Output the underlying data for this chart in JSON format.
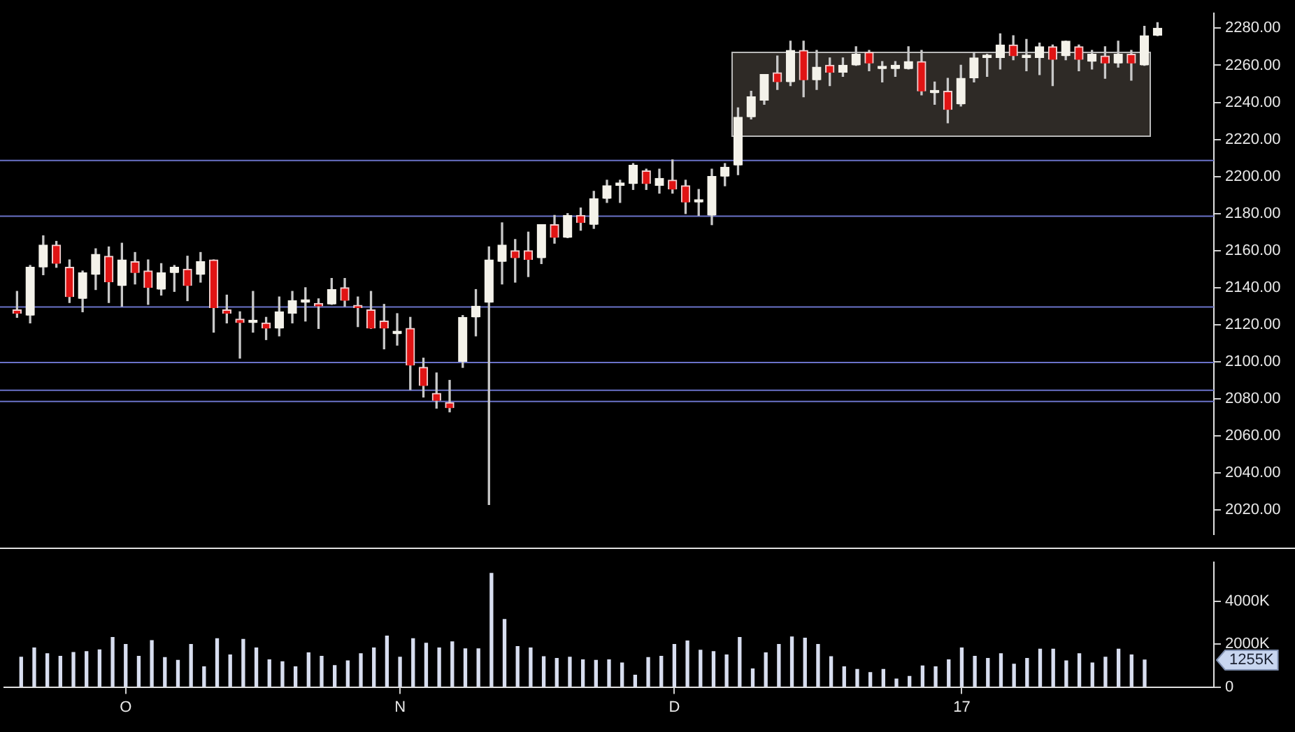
{
  "chart_data": [
    {
      "type": "candlestick",
      "ohlc": [
        [
          2128,
          2138,
          2124,
          2126
        ],
        [
          2125,
          2152,
          2121,
          2151
        ],
        [
          2151,
          2168,
          2147,
          2163
        ],
        [
          2163,
          2165,
          2151,
          2153
        ],
        [
          2151,
          2155,
          2132,
          2135
        ],
        [
          2134,
          2149,
          2127,
          2148
        ],
        [
          2147,
          2161,
          2139,
          2158
        ],
        [
          2157,
          2162,
          2132,
          2143
        ],
        [
          2141,
          2164,
          2130,
          2155
        ],
        [
          2154,
          2159,
          2142,
          2148
        ],
        [
          2149,
          2155,
          2131,
          2140
        ],
        [
          2139,
          2153,
          2136,
          2148
        ],
        [
          2148,
          2152,
          2138,
          2151
        ],
        [
          2150,
          2157,
          2133,
          2141
        ],
        [
          2147,
          2159,
          2143,
          2154
        ],
        [
          2155,
          2155,
          2116,
          2129
        ],
        [
          2128,
          2136,
          2121,
          2126
        ],
        [
          2123,
          2127,
          2102,
          2121
        ],
        [
          2121,
          2138,
          2116,
          2122
        ],
        [
          2121,
          2124,
          2112,
          2118
        ],
        [
          2118,
          2135,
          2114,
          2127
        ],
        [
          2126,
          2138,
          2121,
          2133
        ],
        [
          2132,
          2140,
          2122,
          2133
        ],
        [
          2131,
          2134,
          2118,
          2130
        ],
        [
          2131,
          2145,
          2131,
          2139
        ],
        [
          2140,
          2145,
          2130,
          2133
        ],
        [
          2130,
          2135,
          2119,
          2129
        ],
        [
          2128,
          2138,
          2118,
          2118
        ],
        [
          2122,
          2131,
          2107,
          2118
        ],
        [
          2115,
          2126,
          2109,
          2115
        ],
        [
          2118,
          2124,
          2085,
          2098
        ],
        [
          2097,
          2102,
          2081,
          2087
        ],
        [
          2083,
          2094,
          2075,
          2079
        ],
        [
          2078,
          2090,
          2073,
          2075
        ],
        [
          2100,
          2125,
          2097,
          2124
        ],
        [
          2124,
          2139,
          2114,
          2130
        ],
        [
          2132,
          2162,
          2023,
          2155
        ],
        [
          2154,
          2175,
          2142,
          2163
        ],
        [
          2160,
          2166,
          2143,
          2156
        ],
        [
          2160,
          2170,
          2146,
          2155
        ],
        [
          2156,
          2174,
          2153,
          2174
        ],
        [
          2174,
          2179,
          2164,
          2167
        ],
        [
          2167,
          2180,
          2167,
          2179
        ],
        [
          2179,
          2183,
          2171,
          2175
        ],
        [
          2174,
          2192,
          2172,
          2188
        ],
        [
          2188,
          2198,
          2186,
          2195
        ],
        [
          2195,
          2198,
          2186,
          2196
        ],
        [
          2196,
          2207,
          2193,
          2206
        ],
        [
          2203,
          2204,
          2193,
          2196
        ],
        [
          2195,
          2204,
          2191,
          2199
        ],
        [
          2198,
          2209,
          2191,
          2193
        ],
        [
          2195,
          2198,
          2180,
          2186
        ],
        [
          2186,
          2193,
          2179,
          2187
        ],
        [
          2179,
          2204,
          2174,
          2200
        ],
        [
          2200,
          2207,
          2195,
          2205
        ],
        [
          2206,
          2237,
          2201,
          2232
        ],
        [
          2232,
          2246,
          2231,
          2243
        ],
        [
          2241,
          2255,
          2239,
          2255
        ],
        [
          2256,
          2265,
          2247,
          2251
        ],
        [
          2251,
          2273,
          2249,
          2268
        ],
        [
          2268,
          2273,
          2243,
          2252
        ],
        [
          2252,
          2268,
          2247,
          2259
        ],
        [
          2260,
          2264,
          2249,
          2256
        ],
        [
          2256,
          2264,
          2254,
          2260
        ],
        [
          2260,
          2270,
          2260,
          2266
        ],
        [
          2267,
          2268,
          2257,
          2261
        ],
        [
          2258,
          2262,
          2251,
          2259
        ],
        [
          2258,
          2262,
          2254,
          2260
        ],
        [
          2258,
          2270,
          2258,
          2262
        ],
        [
          2262,
          2268,
          2244,
          2246
        ],
        [
          2245,
          2251,
          2239,
          2246
        ],
        [
          2246,
          2253,
          2229,
          2236
        ],
        [
          2239,
          2260,
          2238,
          2253
        ],
        [
          2253,
          2267,
          2251,
          2264
        ],
        [
          2264,
          2266,
          2254,
          2265
        ],
        [
          2264,
          2277,
          2258,
          2271
        ],
        [
          2271,
          2276,
          2263,
          2265
        ],
        [
          2264,
          2274,
          2257,
          2265
        ],
        [
          2264,
          2272,
          2255,
          2270
        ],
        [
          2270,
          2271,
          2249,
          2263
        ],
        [
          2265,
          2273,
          2263,
          2273
        ],
        [
          2270,
          2271,
          2257,
          2263
        ],
        [
          2262,
          2268,
          2258,
          2266
        ],
        [
          2265,
          2270,
          2253,
          2261
        ],
        [
          2261,
          2273,
          2259,
          2266
        ],
        [
          2266,
          2268,
          2252,
          2261
        ],
        [
          2260,
          2281,
          2260,
          2276
        ],
        [
          2276,
          2283,
          2276,
          2280
        ]
      ],
      "ylim": [
        2007,
        2288
      ],
      "yticks": [
        {
          "value": 2020,
          "label": "2020.00"
        },
        {
          "value": 2040,
          "label": "2040.00"
        },
        {
          "value": 2060,
          "label": "2060.00"
        },
        {
          "value": 2080,
          "label": "2080.00"
        },
        {
          "value": 2100,
          "label": "2100.00"
        },
        {
          "value": 2120,
          "label": "2120.00"
        },
        {
          "value": 2140,
          "label": "2140.00"
        },
        {
          "value": 2160,
          "label": "2160.00"
        },
        {
          "value": 2180,
          "label": "2180.00"
        },
        {
          "value": 2200,
          "label": "2200.00"
        },
        {
          "value": 2220,
          "label": "2220.00"
        },
        {
          "value": 2240,
          "label": "2240.00"
        },
        {
          "value": 2260,
          "label": "2260.00"
        },
        {
          "value": 2280,
          "label": "2280.00"
        }
      ],
      "tick_labels": "y",
      "ref_lines": [
        {
          "axis": "y",
          "value": 2209,
          "color": "#6a72c8"
        },
        {
          "axis": "y",
          "value": 2179,
          "color": "#6a72c8"
        },
        {
          "axis": "y",
          "value": 2130,
          "color": "#6a72c8"
        },
        {
          "axis": "y",
          "value": 2100,
          "color": "#6a72c8"
        },
        {
          "axis": "y",
          "value": 2085,
          "color": "#6a72c8"
        },
        {
          "axis": "y",
          "value": 2079,
          "color": "#6a72c8"
        }
      ]
    },
    {
      "type": "bar",
      "categories": [
        null,
        null,
        null,
        null,
        null,
        null,
        null,
        null,
        "O",
        null,
        null,
        null,
        null,
        null,
        null,
        null,
        null,
        null,
        null,
        null,
        null,
        null,
        null,
        null,
        null,
        null,
        null,
        null,
        null,
        "N",
        null,
        null,
        null,
        null,
        null,
        null,
        null,
        null,
        null,
        null,
        null,
        null,
        null,
        null,
        null,
        null,
        null,
        null,
        null,
        null,
        "D",
        null,
        null,
        null,
        null,
        null,
        null,
        null,
        null,
        null,
        null,
        null,
        null,
        null,
        null,
        null,
        null,
        null,
        null,
        null,
        null,
        null,
        "17",
        null,
        null,
        null,
        null,
        null,
        null,
        null,
        null,
        null,
        null,
        null,
        null,
        null,
        null,
        null
      ],
      "values": [
        1390,
        1820,
        1550,
        1430,
        1610,
        1650,
        1730,
        2310,
        1980,
        1430,
        2160,
        1370,
        1240,
        1980,
        940,
        2250,
        1490,
        2220,
        1820,
        1270,
        1180,
        940,
        1590,
        1430,
        1000,
        1220,
        1550,
        1820,
        2370,
        1390,
        2250,
        2040,
        1820,
        2100,
        1780,
        1780,
        5290,
        3140,
        1880,
        1820,
        1410,
        1330,
        1390,
        1270,
        1240,
        1270,
        1120,
        550,
        1370,
        1430,
        1980,
        2140,
        1710,
        1650,
        1490,
        2310,
        840,
        1590,
        1980,
        2330,
        2270,
        1980,
        1410,
        940,
        820,
        670,
        820,
        370,
        490,
        980,
        940,
        1270,
        1820,
        1430,
        1330,
        1550,
        1060,
        1330,
        1760,
        1760,
        1220,
        1550,
        1120,
        1390,
        1760,
        1490,
        1255,
        null
      ],
      "color": "#d8def0",
      "ylim": [
        0,
        5800
      ],
      "yticks": [
        0,
        {
          "value": 2000,
          "label": "2000K"
        },
        {
          "value": 4000,
          "label": "4000K"
        }
      ],
      "annotations": [
        "1255K"
      ]
    }
  ]
}
